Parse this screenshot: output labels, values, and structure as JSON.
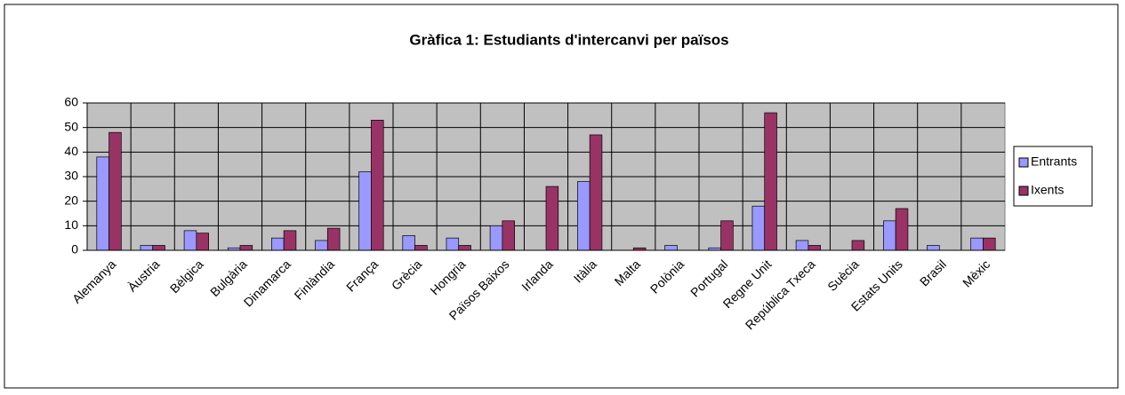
{
  "chart_data": {
    "type": "bar",
    "title": "Gràfica 1: Estudiants d'intercanvi per països",
    "categories": [
      "Alemanya",
      "Àustria",
      "Bèlgica",
      "Bulgària",
      "Dinamarca",
      "Finlàndia",
      "França",
      "Grècia",
      "Hongria",
      "Països Baixos",
      "Irlanda",
      "Itàlia",
      "Malta",
      "Polònia",
      "Portugal",
      "Regne Unit",
      "República Txeca",
      "Suècia",
      "Estats Units",
      "Brasil",
      "Mèxic"
    ],
    "series": [
      {
        "name": "Entrants",
        "color": "#9999ff",
        "values": [
          38,
          2,
          8,
          1,
          5,
          4,
          32,
          6,
          5,
          10,
          0,
          28,
          0,
          2,
          1,
          18,
          4,
          0,
          12,
          2,
          5
        ]
      },
      {
        "name": "Ixents",
        "color": "#993366",
        "values": [
          48,
          2,
          7,
          2,
          8,
          9,
          53,
          2,
          2,
          12,
          26,
          47,
          1,
          0,
          12,
          56,
          2,
          4,
          17,
          0,
          5
        ]
      }
    ],
    "ylim": [
      0,
      60
    ],
    "yticks": [
      0,
      10,
      20,
      30,
      40,
      50,
      60
    ],
    "grid": true,
    "legend": "right"
  }
}
